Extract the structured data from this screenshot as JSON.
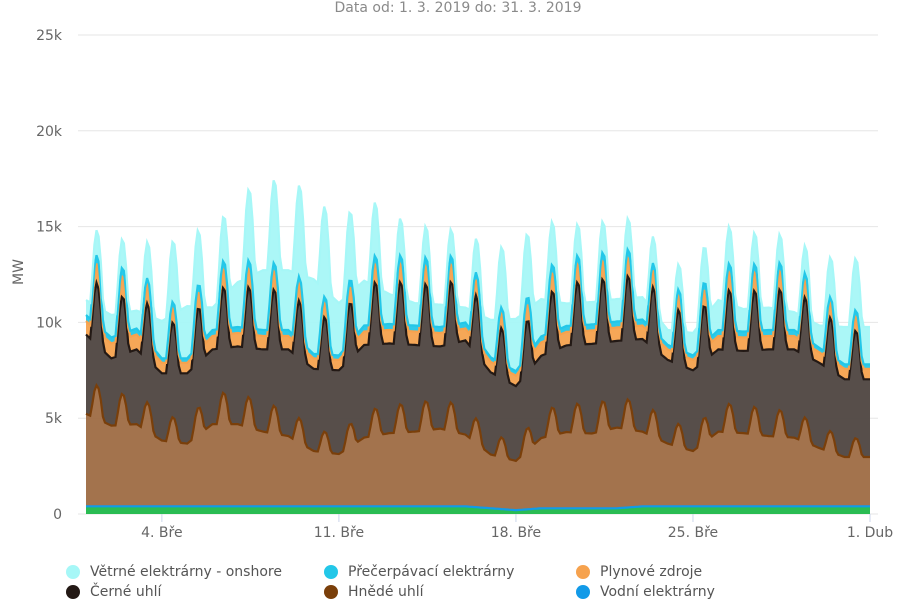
{
  "chart_data": {
    "type": "area",
    "subtitle": "Data od: 1. 3. 2019 do: 31. 3. 2019",
    "ylabel": "MW",
    "ylim": [
      0,
      25000
    ],
    "y_ticks": [
      {
        "value": 0,
        "label": "0"
      },
      {
        "value": 5000,
        "label": "5k"
      },
      {
        "value": 10000,
        "label": "10k"
      },
      {
        "value": 15000,
        "label": "15k"
      },
      {
        "value": 20000,
        "label": "20k"
      },
      {
        "value": 25000,
        "label": "25k"
      }
    ],
    "x_range_days": [
      1,
      32
    ],
    "x_ticks": [
      {
        "day": 4,
        "label": "4. Bře"
      },
      {
        "day": 11,
        "label": "11. Bře"
      },
      {
        "day": 18,
        "label": "18. Bře"
      },
      {
        "day": 25,
        "label": "25. Bře"
      },
      {
        "day": 32,
        "label": "1. Dub"
      }
    ],
    "grid": true,
    "legend_position": "bottom",
    "stack_order_bottom_to_top": [
      "Vodní elektrárny",
      "Hnědé uhlí",
      "Černé uhlí",
      "Plynové zdroje",
      "Přečerpávací elektrárny",
      "Větrné elektrárny - onshore"
    ],
    "series": [
      {
        "name": "Větrné elektrárny - onshore",
        "color": "#a6f7f7",
        "values": [
          1000,
          1500,
          1200,
          2500,
          3500,
          1500,
          3000,
          4000,
          4000,
          5000,
          3500,
          3000,
          2000,
          1500,
          1500,
          1000,
          2500,
          3500,
          2500,
          1500,
          1500,
          1500,
          1500,
          1000,
          1500,
          2000,
          1500,
          1500,
          1200,
          1500,
          2500
        ]
      },
      {
        "name": "Přečerpávací elektrárny",
        "color": "#23c7e8",
        "values": [
          400,
          400,
          400,
          300,
          300,
          400,
          400,
          400,
          400,
          300,
          300,
          400,
          400,
          400,
          400,
          400,
          300,
          300,
          400,
          400,
          400,
          400,
          400,
          300,
          300,
          400,
          400,
          400,
          400,
          300,
          300
        ]
      },
      {
        "name": "Plynové zdroje",
        "color": "#f6a24e",
        "values": [
          900,
          1000,
          1000,
          700,
          700,
          900,
          900,
          900,
          900,
          700,
          700,
          900,
          900,
          900,
          900,
          800,
          700,
          700,
          900,
          900,
          900,
          900,
          900,
          700,
          700,
          900,
          900,
          900,
          900,
          700,
          700
        ]
      },
      {
        "name": "Černé uhlí",
        "color": "#231915",
        "values": [
          5300,
          4500,
          5000,
          4500,
          4700,
          5000,
          5200,
          5500,
          5800,
          5500,
          5600,
          6200,
          6000,
          5800,
          5500,
          6300,
          5500,
          5000,
          5500,
          5800,
          6000,
          5800,
          6200,
          5600,
          5400,
          5500,
          5500,
          5800,
          5900,
          5700,
          5200
        ]
      },
      {
        "name": "Hnědé uhlí",
        "color": "#7a3f0a",
        "values": [
          6200,
          5400,
          5500,
          4400,
          4200,
          5500,
          5500,
          5000,
          4700,
          3700,
          3500,
          4600,
          4900,
          5000,
          5200,
          4800,
          3600,
          3300,
          4700,
          5100,
          5000,
          5400,
          5000,
          4200,
          3700,
          5000,
          4900,
          4700,
          4600,
          3900,
          3300
        ]
      },
      {
        "name": "Vodní elektrárny",
        "color": "#129ae8",
        "values": [
          400,
          400,
          400,
          400,
          400,
          400,
          400,
          400,
          400,
          400,
          400,
          400,
          400,
          400,
          400,
          400,
          300,
          200,
          300,
          300,
          300,
          300,
          400,
          400,
          400,
          400,
          400,
          400,
          400,
          400,
          400
        ]
      }
    ]
  }
}
